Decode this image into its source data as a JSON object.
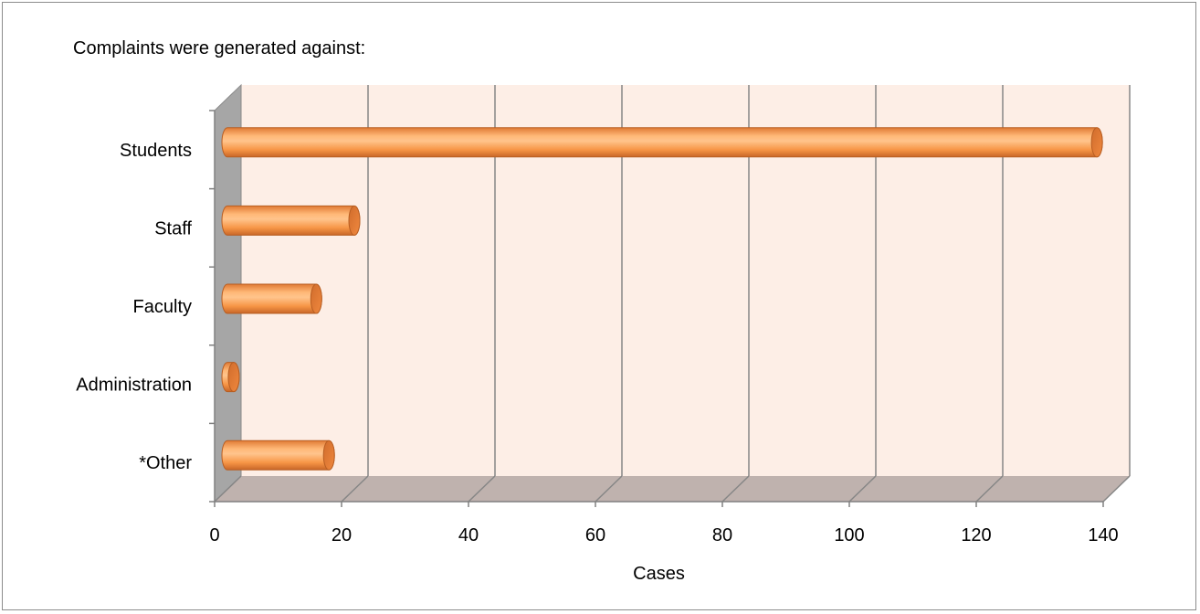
{
  "chart_data": {
    "type": "bar",
    "orientation": "horizontal",
    "style": "3d-cylinder",
    "title": "Complaints were generated against:",
    "xlabel": "Cases",
    "ylabel": "",
    "categories": [
      "Students",
      "Staff",
      "Faculty",
      "Administration",
      "*Other"
    ],
    "values": [
      137,
      20,
      14,
      1,
      16
    ],
    "xlim": [
      0,
      140
    ],
    "xticks": [
      0,
      20,
      40,
      60,
      80,
      100,
      120,
      140
    ],
    "xtick_labels": [
      "0",
      "20",
      "40",
      "60",
      "80",
      "100",
      "120",
      "140"
    ],
    "grid": true,
    "legend": "none",
    "colors": {
      "bar_main": "#f79646",
      "bar_light": "#ffcc99",
      "bar_dark": "#c0622a",
      "wall": "#fdeee6",
      "floor": "#bfb2ae",
      "side_wall": "#a6a6a6",
      "gridline": "#868686"
    }
  }
}
